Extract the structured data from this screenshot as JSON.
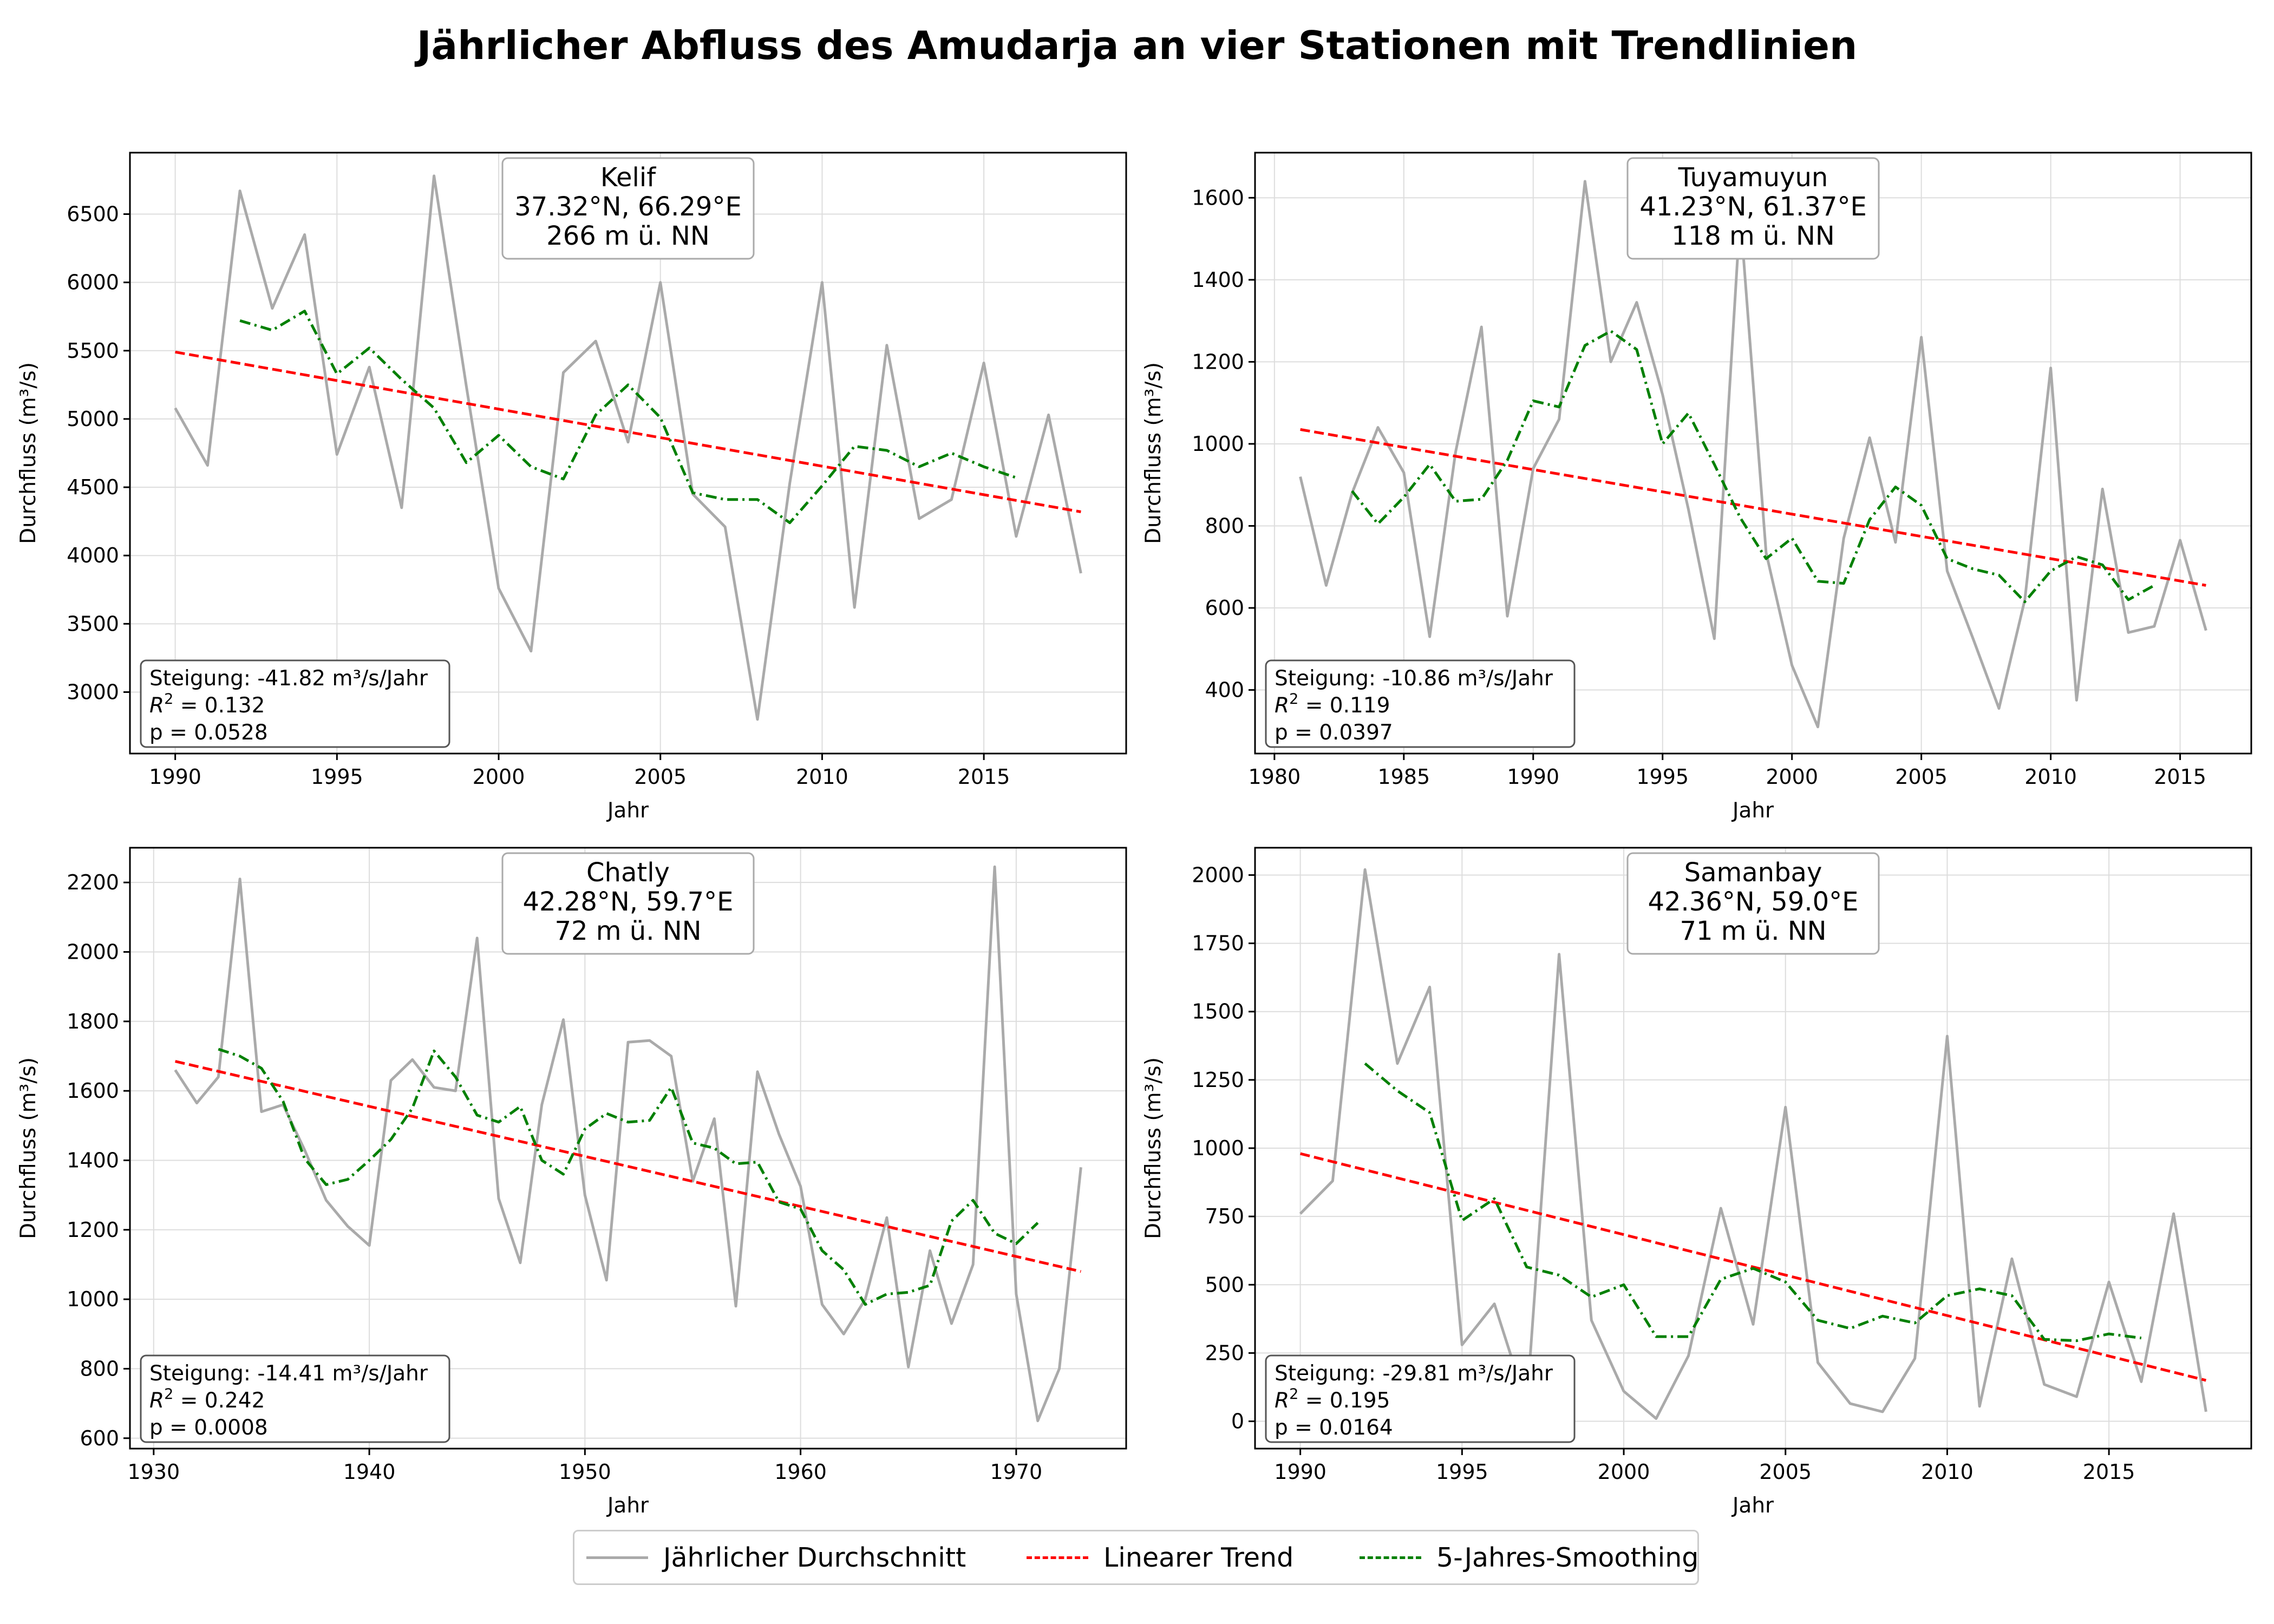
{
  "title": "Jährlicher Abfluss des Amudarja an vier Stationen mit Trendlinien",
  "legend": {
    "items": [
      {
        "label": "Jährlicher Durchschnitt",
        "color": "#aaaaaa",
        "style": "solid"
      },
      {
        "label": "Linearer Trend",
        "color": "#ff0000",
        "style": "dashed"
      },
      {
        "label": "5-Jahres-Smoothing",
        "color": "#008000",
        "style": "dashdot"
      }
    ]
  },
  "colors": {
    "annual": "#aaaaaa",
    "trend": "#ff0000",
    "smooth": "#008000",
    "grid": "#dddddd"
  },
  "chart_data": [
    {
      "type": "line",
      "station": "Kelif",
      "coords": "37.32°N, 66.29°E",
      "elevation": "266 m ü. NN",
      "xlabel": "Jahr",
      "ylabel": "Durchfluss (m³/s)",
      "xlim": [
        1988.6,
        2019.4
      ],
      "ylim": [
        2550,
        6950
      ],
      "xticks": [
        1990,
        1995,
        2000,
        2005,
        2010,
        2015
      ],
      "yticks": [
        3000,
        3500,
        4000,
        4500,
        5000,
        5500,
        6000,
        6500
      ],
      "grid": true,
      "stats": {
        "slope": "Steigung: -41.82 m³/s/Jahr",
        "r2_label": "R",
        "r2_value": "= 0.132",
        "p": "p = 0.0528"
      },
      "annual": {
        "x": [
          1990,
          1991,
          1992,
          1993,
          1994,
          1995,
          1996,
          1997,
          1998,
          1999,
          2000,
          2001,
          2002,
          2003,
          2004,
          2005,
          2006,
          2007,
          2008,
          2009,
          2010,
          2011,
          2012,
          2013,
          2014,
          2015,
          2016,
          2017,
          2018
        ],
        "y": [
          5080,
          4660,
          6670,
          5810,
          6350,
          4740,
          5380,
          4350,
          6780,
          5240,
          3760,
          3300,
          5340,
          5570,
          4830,
          6000,
          4450,
          4210,
          2800,
          4530,
          6000,
          3620,
          5540,
          4270,
          4410,
          5410,
          4140,
          5030,
          3870
        ]
      },
      "trend": {
        "x": [
          1990,
          2018
        ],
        "y": [
          5490,
          4320
        ]
      },
      "smooth": {
        "x": [
          1992,
          1993,
          1994,
          1995,
          1996,
          1997,
          1998,
          1999,
          2000,
          2001,
          2002,
          2003,
          2004,
          2005,
          2006,
          2007,
          2008,
          2009,
          2010,
          2011,
          2012,
          2013,
          2014,
          2015,
          2016
        ],
        "y": [
          5720,
          5650,
          5790,
          5330,
          5520,
          5290,
          5080,
          4680,
          4880,
          4650,
          4560,
          5030,
          5250,
          5010,
          4460,
          4410,
          4410,
          4240,
          4510,
          4800,
          4770,
          4650,
          4750,
          4650,
          4570
        ]
      }
    },
    {
      "type": "line",
      "station": "Tuyamuyun",
      "coords": "41.23°N, 61.37°E",
      "elevation": "118 m ü. NN",
      "xlabel": "Jahr",
      "ylabel": "Durchfluss (m³/s)",
      "xlim": [
        1979.25,
        2017.75
      ],
      "ylim": [
        245,
        1710
      ],
      "xticks": [
        1980,
        1985,
        1990,
        1995,
        2000,
        2005,
        2010,
        2015
      ],
      "yticks": [
        400,
        600,
        800,
        1000,
        1200,
        1400,
        1600
      ],
      "grid": true,
      "stats": {
        "slope": "Steigung: -10.86 m³/s/Jahr",
        "r2_label": "R",
        "r2_value": "= 0.119",
        "p": "p = 0.0397"
      },
      "annual": {
        "x": [
          1981,
          1982,
          1983,
          1984,
          1985,
          1986,
          1987,
          1988,
          1989,
          1990,
          1991,
          1992,
          1993,
          1994,
          1995,
          1996,
          1997,
          1998,
          1999,
          2000,
          2001,
          2002,
          2003,
          2004,
          2005,
          2006,
          2007,
          2008,
          2009,
          2010,
          2011,
          2012,
          2013,
          2014,
          2015,
          2016
        ],
        "y": [
          920,
          655,
          880,
          1040,
          930,
          530,
          980,
          1285,
          580,
          940,
          1060,
          1640,
          1200,
          1345,
          1120,
          840,
          525,
          1560,
          735,
          460,
          310,
          770,
          1015,
          760,
          1260,
          690,
          525,
          355,
          620,
          1185,
          375,
          890,
          540,
          555,
          765,
          545
        ]
      },
      "trend": {
        "x": [
          1981,
          2016
        ],
        "y": [
          1035,
          655
        ]
      },
      "smooth": {
        "x": [
          1983,
          1984,
          1985,
          1986,
          1987,
          1988,
          1989,
          1990,
          1991,
          1992,
          1993,
          1994,
          1995,
          1996,
          1997,
          1998,
          1999,
          2000,
          2001,
          2002,
          2003,
          2004,
          2005,
          2006,
          2007,
          2008,
          2009,
          2010,
          2011,
          2012,
          2013,
          2014
        ],
        "y": [
          885,
          805,
          870,
          950,
          860,
          865,
          960,
          1105,
          1090,
          1240,
          1275,
          1230,
          1000,
          1075,
          950,
          820,
          720,
          770,
          665,
          660,
          815,
          895,
          850,
          720,
          695,
          680,
          615,
          690,
          725,
          705,
          620,
          655
        ]
      }
    },
    {
      "type": "line",
      "station": "Chatly",
      "coords": "42.28°N, 59.7°E",
      "elevation": "72 m ü. NN",
      "xlabel": "Jahr",
      "ylabel": "Durchfluss (m³/s)",
      "xlim": [
        1928.9,
        1975.1
      ],
      "ylim": [
        570,
        2300
      ],
      "xticks": [
        1930,
        1940,
        1950,
        1960,
        1970
      ],
      "yticks": [
        600,
        800,
        1000,
        1200,
        1400,
        1600,
        1800,
        2000,
        2200
      ],
      "grid": true,
      "stats": {
        "slope": "Steigung: -14.41 m³/s/Jahr",
        "r2_label": "R",
        "r2_value": "= 0.242",
        "p": "p = 0.0008"
      },
      "annual": {
        "x": [
          1931,
          1932,
          1933,
          1934,
          1935,
          1936,
          1937,
          1938,
          1939,
          1940,
          1941,
          1942,
          1943,
          1944,
          1945,
          1946,
          1947,
          1948,
          1949,
          1950,
          1951,
          1952,
          1953,
          1954,
          1955,
          1956,
          1957,
          1958,
          1959,
          1960,
          1961,
          1962,
          1963,
          1964,
          1965,
          1966,
          1967,
          1968,
          1969,
          1970,
          1971,
          1972,
          1973
        ],
        "y": [
          1660,
          1565,
          1640,
          2210,
          1540,
          1560,
          1430,
          1285,
          1210,
          1155,
          1630,
          1690,
          1610,
          1600,
          2040,
          1290,
          1105,
          1560,
          1805,
          1300,
          1055,
          1740,
          1745,
          1700,
          1340,
          1520,
          980,
          1655,
          1475,
          1325,
          985,
          900,
          1000,
          1235,
          805,
          1140,
          930,
          1100,
          2245,
          1015,
          650,
          800,
          1380
        ]
      },
      "trend": {
        "x": [
          1931,
          1973
        ],
        "y": [
          1685,
          1080
        ]
      },
      "smooth": {
        "x": [
          1933,
          1934,
          1935,
          1936,
          1937,
          1938,
          1939,
          1940,
          1941,
          1942,
          1943,
          1944,
          1945,
          1946,
          1947,
          1948,
          1949,
          1950,
          1951,
          1952,
          1953,
          1954,
          1955,
          1956,
          1957,
          1958,
          1959,
          1960,
          1961,
          1962,
          1963,
          1964,
          1965,
          1966,
          1967,
          1968,
          1969,
          1970,
          1971
        ],
        "y": [
          1720,
          1700,
          1665,
          1570,
          1405,
          1330,
          1345,
          1400,
          1460,
          1550,
          1715,
          1640,
          1530,
          1510,
          1555,
          1400,
          1360,
          1490,
          1535,
          1510,
          1515,
          1610,
          1450,
          1435,
          1390,
          1395,
          1280,
          1260,
          1140,
          1085,
          985,
          1015,
          1020,
          1040,
          1225,
          1285,
          1190,
          1160,
          1220
        ]
      }
    },
    {
      "type": "line",
      "station": "Samanbay",
      "coords": "42.36°N, 59.0°E",
      "elevation": "71 m ü. NN",
      "xlabel": "Jahr",
      "ylabel": "Durchfluss (m³/s)",
      "xlim": [
        1988.6,
        2019.4
      ],
      "ylim": [
        -100,
        2100
      ],
      "xticks": [
        1990,
        1995,
        2000,
        2005,
        2010,
        2015
      ],
      "yticks": [
        0,
        250,
        500,
        750,
        1000,
        1250,
        1500,
        1750,
        2000
      ],
      "grid": true,
      "stats": {
        "slope": "Steigung: -29.81 m³/s/Jahr",
        "r2_label": "R",
        "r2_value": "= 0.195",
        "p": "p = 0.0164"
      },
      "annual": {
        "x": [
          1990,
          1991,
          1992,
          1993,
          1994,
          1995,
          1996,
          1997,
          1998,
          1999,
          2000,
          2001,
          2002,
          2003,
          2004,
          2005,
          2006,
          2007,
          2008,
          2009,
          2010,
          2011,
          2012,
          2013,
          2014,
          2015,
          2016,
          2017,
          2018
        ],
        "y": [
          760,
          880,
          2020,
          1310,
          1590,
          280,
          430,
          60,
          1710,
          370,
          110,
          10,
          240,
          780,
          355,
          1150,
          215,
          65,
          35,
          230,
          1410,
          55,
          595,
          135,
          90,
          510,
          145,
          760,
          35
        ]
      },
      "trend": {
        "x": [
          1990,
          2018
        ],
        "y": [
          980,
          150
        ]
      },
      "smooth": {
        "x": [
          1992,
          1993,
          1994,
          1995,
          1996,
          1997,
          1998,
          1999,
          2000,
          2001,
          2002,
          2003,
          2004,
          2005,
          2006,
          2007,
          2008,
          2009,
          2010,
          2011,
          2012,
          2013,
          2014,
          2015,
          2016
        ],
        "y": [
          1310,
          1210,
          1130,
          735,
          815,
          565,
          535,
          455,
          500,
          310,
          310,
          520,
          560,
          510,
          370,
          340,
          385,
          360,
          460,
          485,
          460,
          300,
          295,
          320,
          305
        ]
      }
    }
  ]
}
